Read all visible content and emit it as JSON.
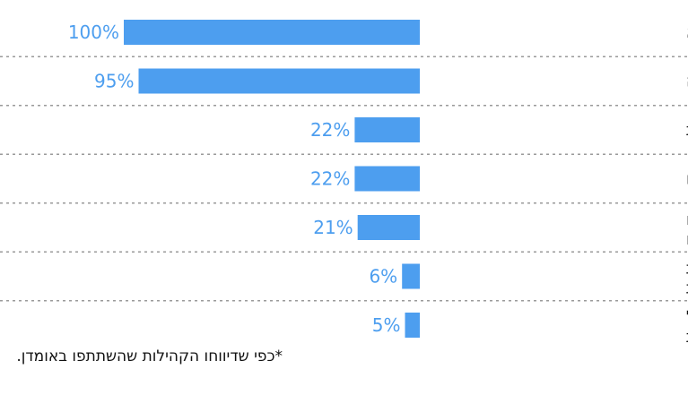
{
  "chart_data": {
    "type": "bar",
    "orientation": "horizontal",
    "title": "",
    "xlabel": "",
    "ylabel": "",
    "xlim": [
      0,
      100
    ],
    "value_suffix": "%",
    "categories": [
      [
        "עליית מחירי המספוא"
      ],
      [
        "צמצום שטחי מרעה"
      ],
      [
        "אספקת מים לא מספקת"
      ],
      [
        "מחלות והיעדר חיסונים"
      ],
      [
        "מתקפות מתנחלים שגרמו",
        "למוות בעדרים"
      ],
      [
        "תפיסת עדרים על ידי רשויות",
        "ישראליות"
      ],
      [
        "הריסת מחסים לבעלי חיים על",
        "ידי רשויות ישראליות"
      ]
    ],
    "values": [
      100,
      95,
      22,
      22,
      21,
      6,
      5
    ],
    "bar_color": "#4d9eef",
    "grid": false
  },
  "footnote": "*כפי שדיווחו הקהילות שהשתתפו באומדן."
}
